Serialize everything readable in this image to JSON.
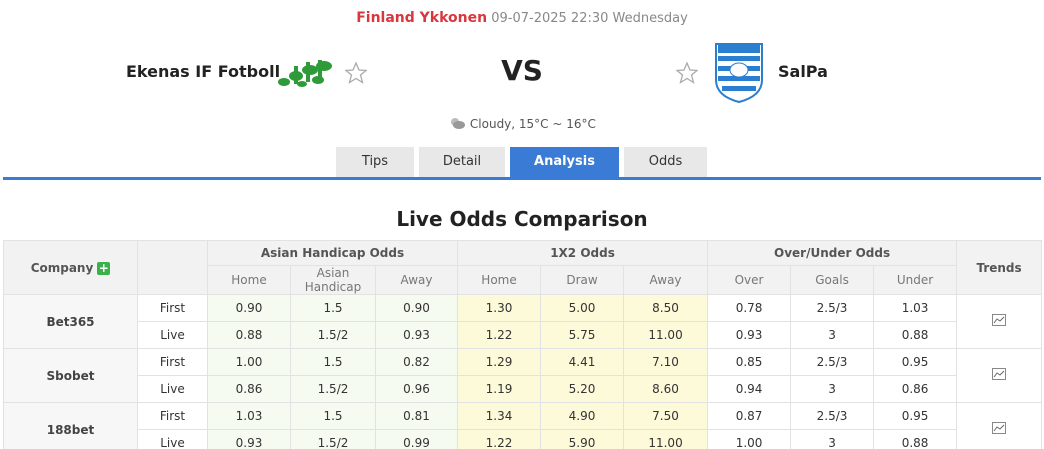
{
  "header": {
    "league": "Finland Ykkonen",
    "datetime": "09-07-2025 22:30 Wednesday",
    "home_team": "Ekenas IF Fotboll",
    "vs": "VS",
    "away_team": "SalPa",
    "weather": "Cloudy, 15°C ~ 16°C"
  },
  "tabs": [
    "Tips",
    "Detail",
    "Analysis",
    "Odds"
  ],
  "active_tab": 2,
  "odds": {
    "title": "Live Odds Comparison",
    "columns": {
      "company": "Company",
      "trends": "Trends",
      "groups": [
        {
          "name": "Asian Handicap Odds",
          "subs": [
            "Home",
            "Asian Handicap",
            "Away"
          ]
        },
        {
          "name": "1X2 Odds",
          "subs": [
            "Home",
            "Draw",
            "Away"
          ]
        },
        {
          "name": "Over/Under Odds",
          "subs": [
            "Over",
            "Goals",
            "Under"
          ]
        }
      ]
    },
    "rows": [
      {
        "company": "Bet365",
        "lines": [
          {
            "label": "First",
            "values": [
              "0.90",
              "1.5",
              "0.90",
              "1.30",
              "5.00",
              "8.50",
              "0.78",
              "2.5/3",
              "1.03"
            ]
          },
          {
            "label": "Live",
            "values": [
              "0.88",
              "1.5/2",
              "0.93",
              "1.22",
              "5.75",
              "11.00",
              "0.93",
              "3",
              "0.88"
            ]
          }
        ]
      },
      {
        "company": "Sbobet",
        "lines": [
          {
            "label": "First",
            "values": [
              "1.00",
              "1.5",
              "0.82",
              "1.29",
              "4.41",
              "7.10",
              "0.85",
              "2.5/3",
              "0.95"
            ]
          },
          {
            "label": "Live",
            "values": [
              "0.86",
              "1.5/2",
              "0.96",
              "1.19",
              "5.20",
              "8.60",
              "0.94",
              "3",
              "0.86"
            ]
          }
        ]
      },
      {
        "company": "188bet",
        "lines": [
          {
            "label": "First",
            "values": [
              "1.03",
              "1.5",
              "0.81",
              "1.34",
              "4.90",
              "7.50",
              "0.87",
              "2.5/3",
              "0.95"
            ]
          },
          {
            "label": "Live",
            "values": [
              "0.93",
              "1.5/2",
              "0.99",
              "1.22",
              "5.90",
              "11.00",
              "1.00",
              "3",
              "0.88"
            ]
          }
        ]
      }
    ]
  }
}
